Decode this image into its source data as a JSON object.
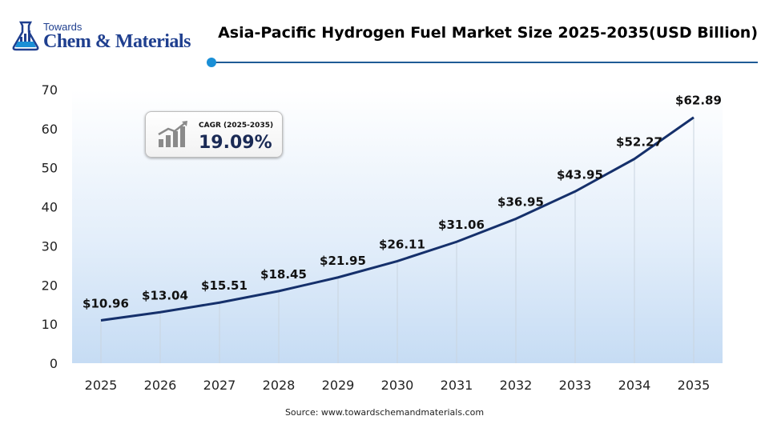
{
  "logo": {
    "line1": "Towards",
    "line2": "Chem & Materials"
  },
  "chart_data": {
    "type": "line",
    "title": "Asia-Pacific Hydrogen Fuel Market Size 2025-2035(USD Billion)",
    "categories": [
      "2025",
      "2026",
      "2027",
      "2028",
      "2029",
      "2030",
      "2031",
      "2032",
      "2033",
      "2034",
      "2035"
    ],
    "series": [
      {
        "values": [
          10.96,
          13.04,
          15.51,
          18.45,
          21.95,
          26.11,
          31.06,
          36.95,
          43.95,
          52.27,
          62.89
        ]
      }
    ],
    "data_labels": [
      "$10.96",
      "$13.04",
      "$15.51",
      "$18.45",
      "$21.95",
      "$26.11",
      "$31.06",
      "$36.95",
      "$43.95",
      "$52.27",
      "$62.89"
    ],
    "ylim": [
      0,
      70
    ],
    "yticks": [
      0,
      10,
      20,
      30,
      40,
      50,
      60,
      70
    ],
    "grid": "vertical",
    "line_color": "#15306b",
    "fill_color": "#cfe3f7",
    "cagr": {
      "label": "CAGR (2025-2035)",
      "value": "19.09%"
    }
  },
  "source": "Source: www.towardschemandmaterials.com"
}
